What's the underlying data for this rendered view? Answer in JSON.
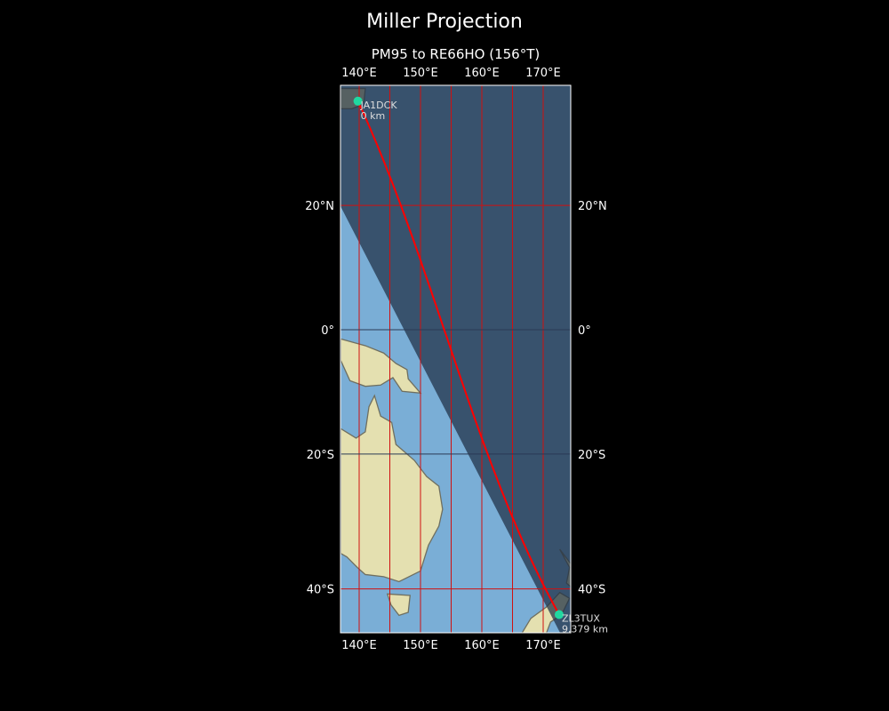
{
  "figure": {
    "title": "Miller Projection",
    "subtitle": "PM95 to RE66HO (156°T)"
  },
  "map": {
    "projection": "Miller",
    "extent": {
      "lon": [
        137,
        174.5
      ],
      "lat": [
        -45.5,
        37.5
      ]
    },
    "lon_ticks": [
      {
        "value": 140,
        "label": "140°E"
      },
      {
        "value": 150,
        "label": "150°E"
      },
      {
        "value": 160,
        "label": "160°E"
      },
      {
        "value": 170,
        "label": "170°E"
      }
    ],
    "lat_ticks": [
      {
        "value": 20,
        "label": "20°N"
      },
      {
        "value": 0,
        "label": "0°"
      },
      {
        "value": -20,
        "label": "20°S"
      },
      {
        "value": -40,
        "label": "40°S"
      }
    ],
    "gridline_color": "#d01010",
    "path_color": "#ff0000",
    "marker_color": "#20d8a0",
    "night_shading": true,
    "stations": [
      {
        "call": "JA1DCK",
        "distance": "0 km",
        "lon": 139.8,
        "lat": 35.7
      },
      {
        "call": "ZL3TUX",
        "distance": "9,379 km",
        "lon": 172.6,
        "lat": -43.5
      }
    ]
  }
}
